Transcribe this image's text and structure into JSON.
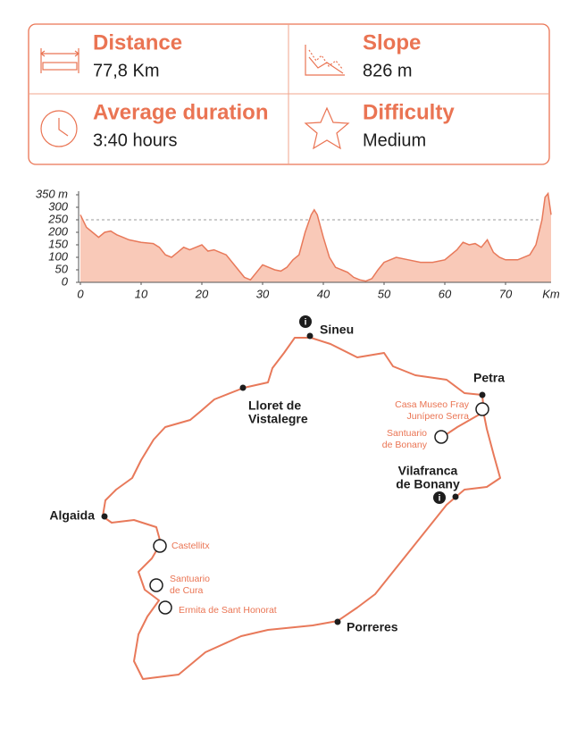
{
  "stats": [
    {
      "label": "Distance",
      "value": "77,8 Km"
    },
    {
      "label": "Slope",
      "value": "826 m"
    },
    {
      "label": "Average duration",
      "value": "3:40 hours"
    },
    {
      "label": "Difficulty",
      "value": "Medium"
    }
  ],
  "chart_data": {
    "type": "area",
    "color": "#e8795a",
    "fill": "#f9c9b8",
    "xlabel": "Km",
    "x": [
      0,
      1,
      2,
      3,
      4,
      5,
      6,
      7,
      8,
      10,
      12,
      13,
      14,
      15,
      16,
      17,
      18,
      19,
      20,
      21,
      22,
      23,
      24,
      25,
      26,
      27,
      28,
      29,
      30,
      31,
      32,
      33,
      34,
      35,
      36,
      37,
      38,
      38.5,
      39,
      40,
      41,
      42,
      43,
      44,
      45,
      46,
      47,
      48,
      49,
      50,
      51,
      52,
      54,
      56,
      58,
      60,
      62,
      63,
      64,
      65,
      66,
      67,
      68,
      69,
      70,
      72,
      74,
      75,
      76,
      76.5,
      77,
      77.5
    ],
    "values": [
      270,
      220,
      200,
      180,
      200,
      205,
      190,
      180,
      170,
      160,
      155,
      140,
      110,
      100,
      120,
      140,
      130,
      140,
      150,
      125,
      130,
      120,
      110,
      80,
      50,
      20,
      10,
      40,
      70,
      60,
      50,
      45,
      60,
      90,
      110,
      200,
      270,
      290,
      270,
      180,
      100,
      60,
      50,
      40,
      20,
      10,
      5,
      15,
      50,
      80,
      90,
      100,
      90,
      80,
      80,
      90,
      130,
      160,
      150,
      155,
      140,
      170,
      120,
      100,
      90,
      90,
      110,
      150,
      250,
      340,
      355,
      270
    ],
    "xlim": [
      0,
      77.5
    ],
    "ylim": [
      0,
      350
    ],
    "xticks": [
      0,
      10,
      20,
      30,
      40,
      50,
      60,
      70
    ],
    "yticks": [
      0,
      50,
      100,
      150,
      200,
      250,
      300,
      {
        "value": 350,
        "label": "350 m"
      }
    ],
    "reference_line": 250
  },
  "map": {
    "towns": [
      {
        "label_lines": [
          "Sineu"
        ]
      },
      {
        "label_lines": [
          "Lloret de",
          "Vistalegre"
        ]
      },
      {
        "label_lines": [
          "Petra"
        ]
      },
      {
        "label_lines": [
          "Vilafranca",
          "de Bonany"
        ]
      },
      {
        "label_lines": [
          "Algaida"
        ]
      },
      {
        "label_lines": [
          "Porreres"
        ]
      }
    ],
    "pois": [
      {
        "label_lines": [
          "Casa Museo Fray",
          "Junípero Serra"
        ]
      },
      {
        "label_lines": [
          "Santuario",
          "de Bonany"
        ]
      },
      {
        "label_lines": [
          "Castellitx"
        ]
      },
      {
        "label_lines": [
          "Santuario",
          "de Cura"
        ]
      },
      {
        "label_lines": [
          "Ermita de Sant Honorat"
        ]
      }
    ]
  }
}
